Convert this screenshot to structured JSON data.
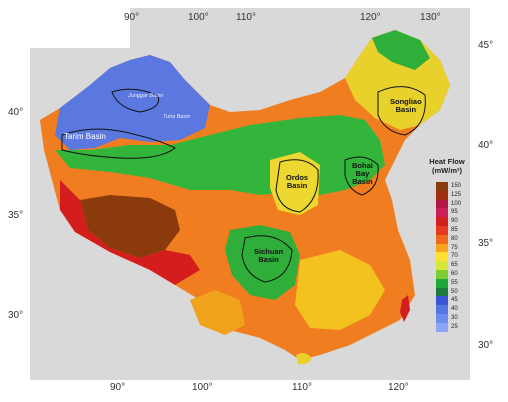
{
  "map": {
    "lon_top": [
      "90°",
      "100°",
      "110°",
      "120°",
      "130°"
    ],
    "lon_bottom": [
      "90°",
      "100°",
      "110°",
      "120°"
    ],
    "lat_left": [
      "40°",
      "35°",
      "30°"
    ],
    "lat_right": [
      "45°",
      "40°",
      "35°",
      "30°"
    ],
    "basins": {
      "tarim": "Tarim Basin",
      "junggar": "Junggar Basin",
      "turpan": "Tuha Basin",
      "ordos": "Ordos\nBasin",
      "sichuan": "Sichuan\nBasin",
      "songliao": "Songliao\nBasin",
      "bohai": "Bohai\nBay\nBasin"
    }
  },
  "legend": {
    "title": "Heat Flow\n(mW/m²)",
    "ticks": [
      "150",
      "125",
      "100",
      "95",
      "90",
      "85",
      "80",
      "75",
      "70",
      "65",
      "60",
      "55",
      "50",
      "45",
      "40",
      "30",
      "25"
    ],
    "colors": [
      "#8b3a0c",
      "#a0300f",
      "#b51547",
      "#cc1f5a",
      "#d41d1d",
      "#e83a1e",
      "#f06a1e",
      "#f8a31d",
      "#fde12c",
      "#d5e83a",
      "#7ccc33",
      "#1fa83a",
      "#1c7a3f",
      "#3b55d6",
      "#5476e3",
      "#6c8df0",
      "#8aa5f5"
    ]
  }
}
